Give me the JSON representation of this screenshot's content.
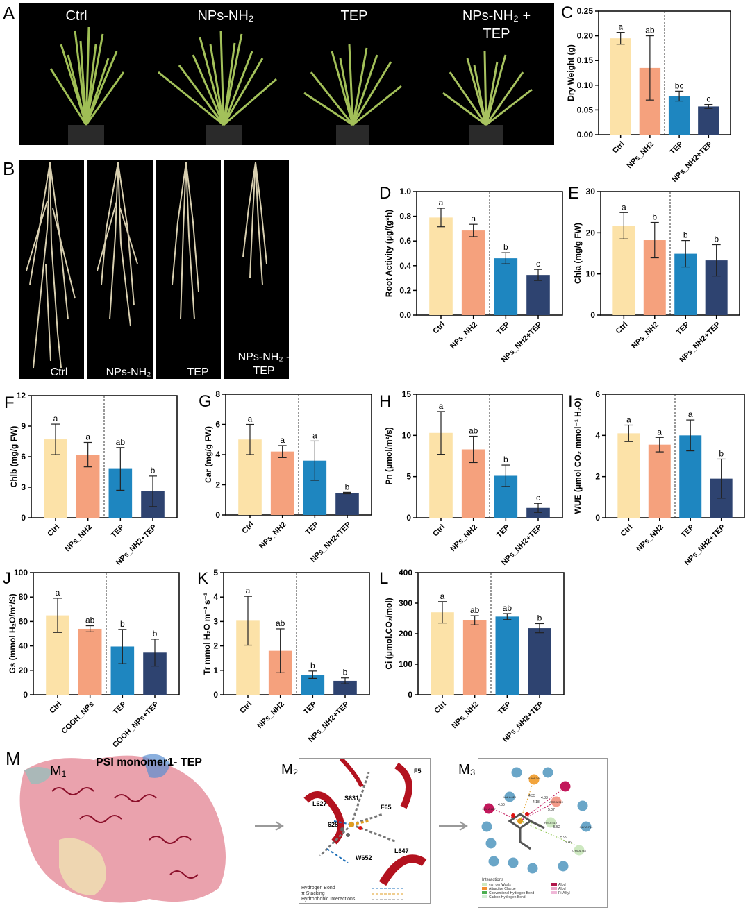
{
  "panels": {
    "A": {
      "letter": "A",
      "labels": [
        "Ctrl",
        "NPs-NH₂",
        "TEP",
        "NPs-NH₂ +",
        "TEP"
      ]
    },
    "B": {
      "letter": "B",
      "labels": [
        "Ctrl",
        "NPs-NH₂",
        "TEP",
        "NPs-NH₂ -",
        "TEP"
      ]
    },
    "M": {
      "letter": "M",
      "sub1": "M₁",
      "title": "PSI monomer1- TEP",
      "sub2": "M₂",
      "sub3": "M₃",
      "m2_residues": [
        "L627",
        "S631",
        "F65",
        "628",
        "L647",
        "W652",
        "F5"
      ],
      "m2_legend": [
        "Hydrogen Bond",
        "π Stacking",
        "Hydrophobic Interactions"
      ],
      "m3_residues": [
        "ARG A:510",
        "ALA A:748",
        "HIS A:519",
        "CYS A:743",
        "LEU A:627",
        "VAL A:629",
        "GLY A:744"
      ],
      "m3_distances": [
        "4.50",
        "4.35",
        "4.18",
        "5.07",
        "5.52",
        "5.99",
        "5.76",
        "4.83"
      ],
      "m3_legend_title": "Interactions",
      "m3_legend": [
        "van der Waals",
        "Attractive Charge",
        "Conventional Hydrogen Bond",
        "Carbon Hydrogen Bond",
        "Alkyl",
        "Alkyl",
        "Pi-Alkyl"
      ]
    }
  },
  "chart_data": [
    {
      "id": "C",
      "type": "bar",
      "letter": "C",
      "ylabel": "Dry Weight (g)",
      "ylim": [
        0,
        0.25
      ],
      "ticks": [
        "0.00",
        "0.05",
        "0.10",
        "0.15",
        "0.20",
        "0.25"
      ],
      "categories": [
        "Ctrl",
        "NPs_NH2",
        "TEP",
        "NPs_NH2+TEP"
      ],
      "values": [
        0.195,
        0.135,
        0.078,
        0.057
      ],
      "errors": [
        0.012,
        0.065,
        0.01,
        0.004
      ],
      "letters": [
        "a",
        "ab",
        "bc",
        "c"
      ]
    },
    {
      "id": "D",
      "type": "bar",
      "letter": "D",
      "ylabel": "Root Activity (μg/(g*h)",
      "ylim": [
        0,
        1.0
      ],
      "ticks": [
        "0.0",
        "0.2",
        "0.4",
        "0.6",
        "0.8",
        "1.0"
      ],
      "categories": [
        "Ctrl",
        "NPs_NH2",
        "TEP",
        "NPs_NH2+TEP"
      ],
      "values": [
        0.79,
        0.685,
        0.46,
        0.325
      ],
      "errors": [
        0.075,
        0.05,
        0.045,
        0.045
      ],
      "letters": [
        "a",
        "a",
        "b",
        "c"
      ]
    },
    {
      "id": "E",
      "type": "bar",
      "letter": "E",
      "ylabel": "Chla (mg/g FW)",
      "ylim": [
        0,
        30
      ],
      "ticks": [
        "0",
        "10",
        "20",
        "30"
      ],
      "categories": [
        "Ctrl",
        "NPs_NH2",
        "TEP",
        "NPs_NH2+TEP"
      ],
      "values": [
        21.7,
        18.2,
        14.9,
        13.3
      ],
      "errors": [
        3.2,
        4.3,
        3.2,
        3.8
      ],
      "letters": [
        "a",
        "b",
        "b",
        "b"
      ]
    },
    {
      "id": "F",
      "type": "bar",
      "letter": "F",
      "ylabel": "Chlb (mg/g FW)",
      "ylim": [
        0,
        12
      ],
      "ticks": [
        "0",
        "3",
        "6",
        "9",
        "12"
      ],
      "categories": [
        "Ctrl",
        "NPs_NH2",
        "TEP",
        "NPs_NH2+TEP"
      ],
      "values": [
        7.7,
        6.2,
        4.8,
        2.6
      ],
      "errors": [
        1.5,
        1.2,
        2.1,
        1.5
      ],
      "letters": [
        "a",
        "a",
        "ab",
        "b"
      ]
    },
    {
      "id": "G",
      "type": "bar",
      "letter": "G",
      "ylabel": "Car (mg/g FW)",
      "ylim": [
        0,
        8
      ],
      "ticks": [
        "0",
        "2",
        "4",
        "6",
        "8"
      ],
      "categories": [
        "Ctrl",
        "NPs_NH2",
        "TEP",
        "NPs_NH2+TEP"
      ],
      "values": [
        5.0,
        4.2,
        3.6,
        1.45
      ],
      "errors": [
        1.0,
        0.4,
        1.3,
        0.05
      ],
      "letters": [
        "a",
        "a",
        "a",
        "b"
      ]
    },
    {
      "id": "H",
      "type": "bar",
      "letter": "H",
      "ylabel": "Pn (μmol/m²/s)",
      "ylim": [
        0,
        15
      ],
      "ticks": [
        "0",
        "5",
        "10",
        "15"
      ],
      "categories": [
        "Ctrl",
        "NPs_NH2",
        "TEP",
        "NPs_NH2+TEP"
      ],
      "values": [
        10.3,
        8.3,
        5.1,
        1.2
      ],
      "errors": [
        2.6,
        1.6,
        1.3,
        0.55
      ],
      "letters": [
        "a",
        "ab",
        "b",
        "c"
      ]
    },
    {
      "id": "I",
      "type": "bar",
      "letter": "I",
      "ylabel": "WUE (μmol CO₂ mmol⁻¹ H₂O)",
      "ylim": [
        0,
        6
      ],
      "ticks": [
        "0",
        "2",
        "4",
        "6"
      ],
      "categories": [
        "Ctrl",
        "NPs_NH2",
        "TEP",
        "NPs_NH2+TEP"
      ],
      "values": [
        4.1,
        3.55,
        4.0,
        1.9
      ],
      "errors": [
        0.4,
        0.35,
        0.75,
        0.95
      ],
      "letters": [
        "a",
        "a",
        "a",
        "b"
      ]
    },
    {
      "id": "J",
      "type": "bar",
      "letter": "J",
      "ylabel": "Gs (mmol H₂O/m²/S)",
      "ylim": [
        0,
        100
      ],
      "ticks": [
        "0",
        "20",
        "40",
        "60",
        "80",
        "100"
      ],
      "categories": [
        "Ctrl",
        "COOH_NPs",
        "TEP",
        "COOH_NPs+TEP"
      ],
      "values": [
        65,
        54,
        39.5,
        34.5
      ],
      "errors": [
        14,
        2.5,
        14,
        11
      ],
      "letters": [
        "a",
        "ab",
        "b",
        "b"
      ]
    },
    {
      "id": "K",
      "type": "bar",
      "letter": "K",
      "ylabel": "Tr   mmol H₂O m⁻² s⁻¹",
      "ylim": [
        0,
        5
      ],
      "ticks": [
        "0",
        "1",
        "2",
        "3",
        "4",
        "5"
      ],
      "categories": [
        "Ctrl",
        "NPs_NH2",
        "TEP",
        "NPs_NH2+TEP"
      ],
      "values": [
        3.03,
        1.8,
        0.82,
        0.57
      ],
      "errors": [
        1.0,
        0.9,
        0.15,
        0.12
      ],
      "letters": [
        "a",
        "ab",
        "b",
        "b"
      ]
    },
    {
      "id": "L",
      "type": "bar",
      "letter": "L",
      "ylabel": "Ci (μmol.CO₂/mol)",
      "ylim": [
        0,
        400
      ],
      "ticks": [
        "0",
        "100",
        "200",
        "300",
        "400"
      ],
      "categories": [
        "Ctrl",
        "NPs_NH2",
        "TEP",
        "NPs_NH2+TEP"
      ],
      "values": [
        270,
        244,
        256,
        218
      ],
      "errors": [
        35,
        15,
        10,
        15
      ],
      "letters": [
        "a",
        "ab",
        "ab",
        "b"
      ]
    }
  ],
  "colors": {
    "bars": [
      "#FCE2A8",
      "#F5A17D",
      "#1E86C0",
      "#2E4370"
    ],
    "error": "#222222"
  }
}
